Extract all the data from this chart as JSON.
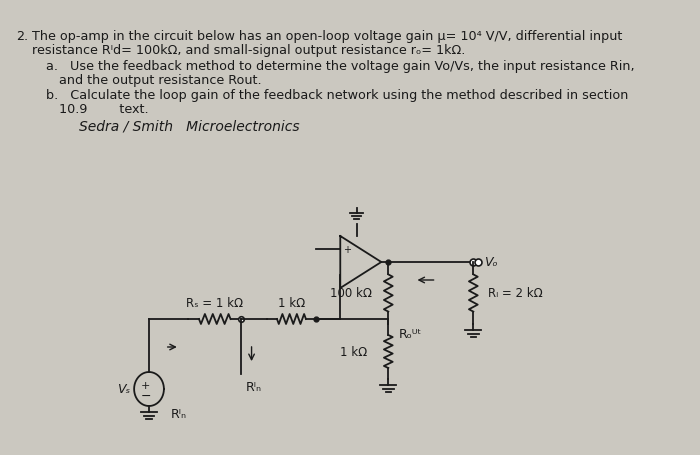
{
  "bg_color": "#cbc8c0",
  "text_color": "#1a1a1a",
  "line1": "2.  The op-amp in the circuit below has an open-loop voltage gain μ= 10⁴ V/V, differential input",
  "line2": "    resistance Rᴵd= 100kΩ, and small-signal output resistance rₒ= 1kΩ.",
  "line3a": "    a.   Use the feedback method to determine the voltage gain Vo/Vs, the input resistance Rin,",
  "line3b": "          and the output resistance Rout.",
  "line4a": "    b.   Calculate the loop gain of the feedback network using the method described in section",
  "line4b": "          10.9        text.",
  "handwriting": "Sedra / Smith   Microelectronics",
  "label_Rs": "Rₛ = 1 kΩ",
  "label_1k": "1 kΩ",
  "label_100k": "100 kΩ",
  "label_RL": "Rₗ = 2 kΩ",
  "label_1k_bot": "1 kΩ",
  "label_Rout": "Rₒᵁᵗ",
  "label_Rin": "Rᴵₙ",
  "label_Vs": "Vₛ",
  "label_Vo": "Vₒ"
}
